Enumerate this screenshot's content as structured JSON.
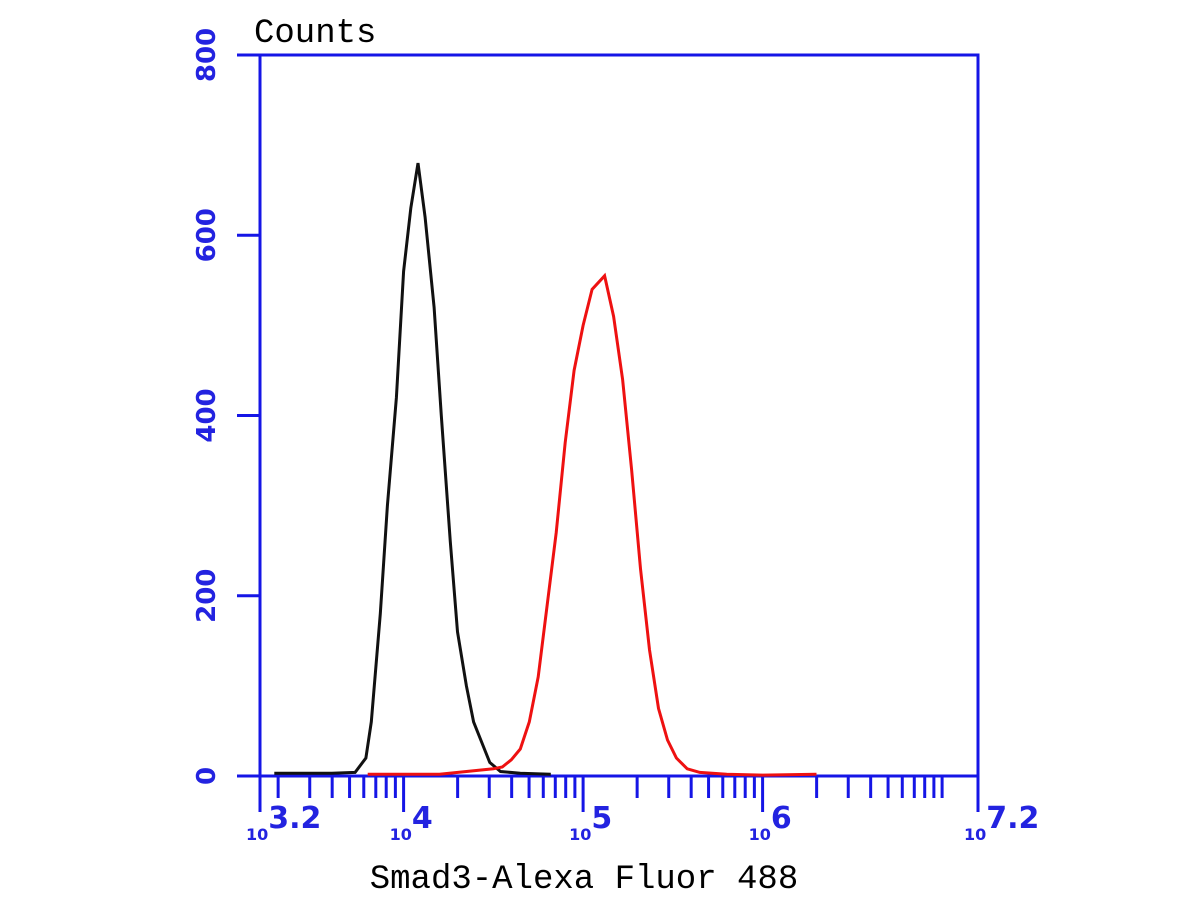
{
  "chart_data": {
    "type": "histogram-line",
    "y_title": "Counts",
    "x_title": "Smad3-Alexa Fluor 488",
    "x_scale": "log",
    "axis_color": "#1515e6",
    "xlim": [
      1584.89,
      15848932
    ],
    "xticks": [
      {
        "value": 1584.89,
        "label": "10",
        "exponent": "3.2"
      },
      {
        "value": 10000,
        "label": "10",
        "exponent": "4"
      },
      {
        "value": 100000,
        "label": "10",
        "exponent": "5"
      },
      {
        "value": 1000000,
        "label": "10",
        "exponent": "6"
      },
      {
        "value": 15848932,
        "label": "10",
        "exponent": "7.2"
      }
    ],
    "xminorticks": [
      2000,
      3000,
      4000,
      5000,
      6000,
      7000,
      8000,
      9000,
      20000,
      30000,
      40000,
      50000,
      60000,
      70000,
      80000,
      90000,
      200000,
      300000,
      400000,
      500000,
      600000,
      700000,
      800000,
      900000,
      2000000,
      3000000,
      4000000,
      5000000,
      6000000,
      7000000,
      8000000,
      9000000,
      10000000
    ],
    "ylim": [
      0,
      800
    ],
    "yticks": [
      0,
      200,
      400,
      600,
      800
    ],
    "series": [
      {
        "color": "#111111",
        "x": [
          1905,
          2512,
          3162,
          3981,
          5370,
          6166,
          6607,
          7413,
          8128,
          9120,
          10000,
          10965,
          12023,
          13183,
          14791,
          16218,
          18197,
          19953,
          22387,
          24547,
          27542,
          30200,
          34674,
          44668,
          66069
        ],
        "values": [
          3,
          3,
          3,
          3,
          4,
          20,
          60,
          180,
          300,
          420,
          560,
          630,
          680,
          620,
          520,
          400,
          260,
          160,
          100,
          60,
          35,
          15,
          5,
          3,
          2
        ]
      },
      {
        "color": "#ee1111",
        "x": [
          6310,
          15849,
          31623,
          35481,
          39811,
          44668,
          50119,
          56234,
          63096,
          70795,
          79433,
          89125,
          100000,
          112202,
          131826,
          147911,
          165959,
          186209,
          208930,
          234423,
          263027,
          295121,
          331131,
          380189,
          446684,
          630957,
          1000000,
          1995262
        ],
        "values": [
          2,
          2,
          8,
          10,
          18,
          30,
          60,
          110,
          190,
          270,
          370,
          450,
          500,
          540,
          555,
          510,
          440,
          340,
          230,
          140,
          75,
          40,
          20,
          8,
          4,
          2,
          1,
          2
        ]
      }
    ]
  }
}
